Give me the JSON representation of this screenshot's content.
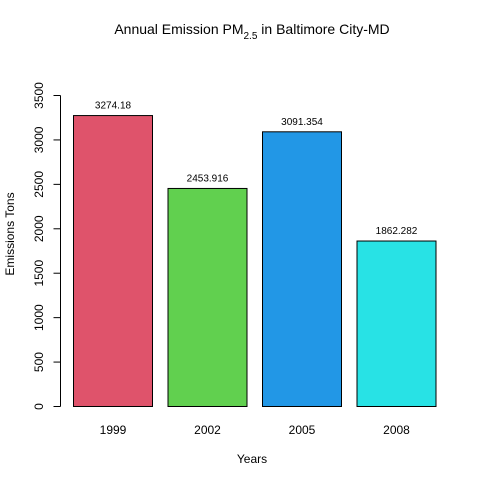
{
  "chart_data": {
    "type": "bar",
    "title": {
      "prefix": "Annual Emission PM",
      "subscript": "2.5",
      "suffix": " in Baltimore City-MD"
    },
    "xlabel": "Years",
    "ylabel": "Emissions Tons",
    "categories": [
      "1999",
      "2002",
      "2005",
      "2008"
    ],
    "values": [
      3274.18,
      2453.916,
      3091.354,
      1862.282
    ],
    "value_labels": [
      "3274.18",
      "2453.916",
      "3091.354",
      "1862.282"
    ],
    "colors": [
      "#DF536B",
      "#61D04F",
      "#2297E6",
      "#28E2E5"
    ],
    "ylim": [
      0,
      3600
    ],
    "yticks": [
      0,
      500,
      1000,
      1500,
      2000,
      2500,
      3000,
      3500
    ],
    "grid": false,
    "legend": "none"
  }
}
